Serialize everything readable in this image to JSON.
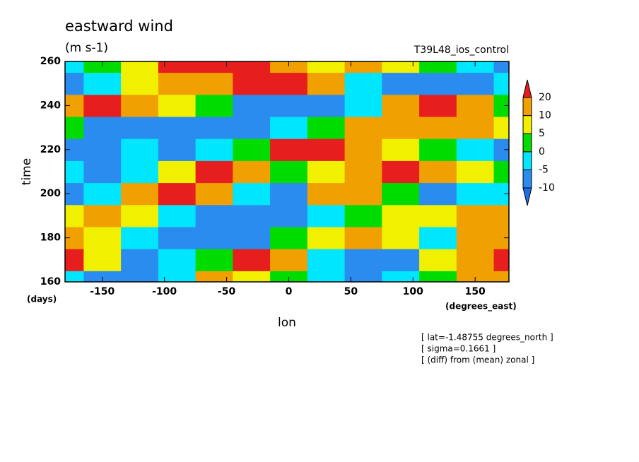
{
  "chart_data": {
    "type": "contour",
    "title": "eastward wind",
    "subtitle": "(m s-1)",
    "run_label": "T39L48_ios_control",
    "x_label": "lon",
    "y_label": "time",
    "y_unit": "(days)",
    "x_unit": "(degrees_east)",
    "notes": [
      "[ lat=-1.48755 degrees_north ]",
      "[ sigma=0.1661 ]",
      "[ (diff) from (mean) zonal ]"
    ],
    "xlim": [
      -180,
      177.1875
    ],
    "ylim": [
      160,
      260
    ],
    "xticks": [
      -150,
      -100,
      -50,
      0,
      50,
      100,
      150
    ],
    "yticks": [
      160,
      180,
      200,
      220,
      240,
      260
    ],
    "x": [
      -180,
      -150,
      -120,
      -90,
      -60,
      -30,
      0,
      30,
      60,
      90,
      120,
      150,
      180
    ],
    "y": [
      160,
      170,
      180,
      190,
      200,
      210,
      220,
      230,
      240,
      250,
      260
    ],
    "levels": [
      -10,
      -5,
      0,
      5,
      10,
      20
    ],
    "colors": [
      "#1e6ee6",
      "#2b8cf0",
      "#00e6ff",
      "#00dc00",
      "#f0f000",
      "#f0a000",
      "#e61e1e"
    ],
    "z": [
      [
        -5,
        -10,
        -10,
        -5,
        10,
        5,
        0,
        -5,
        -10,
        -5,
        0,
        10,
        10
      ],
      [
        20,
        5,
        -10,
        -5,
        0,
        20,
        10,
        -5,
        -10,
        -10,
        5,
        10,
        20
      ],
      [
        10,
        5,
        -5,
        -10,
        -10,
        -10,
        0,
        5,
        10,
        5,
        -5,
        10,
        10
      ],
      [
        5,
        10,
        5,
        -5,
        -10,
        -10,
        -10,
        -5,
        0,
        5,
        5,
        10,
        10
      ],
      [
        -10,
        -5,
        10,
        20,
        10,
        -5,
        -10,
        10,
        10,
        0,
        -10,
        -5,
        -5
      ],
      [
        -5,
        -10,
        -5,
        5,
        20,
        10,
        0,
        5,
        10,
        20,
        10,
        5,
        0
      ],
      [
        -10,
        -10,
        -5,
        -10,
        -5,
        0,
        20,
        20,
        10,
        5,
        0,
        -5,
        -10
      ],
      [
        0,
        -10,
        -10,
        -10,
        -10,
        -10,
        -5,
        0,
        10,
        10,
        10,
        10,
        5
      ],
      [
        10,
        20,
        10,
        5,
        0,
        -10,
        -10,
        -10,
        -5,
        10,
        20,
        10,
        0
      ],
      [
        -10,
        -5,
        5,
        10,
        10,
        20,
        20,
        10,
        -5,
        -10,
        -10,
        -10,
        -5
      ],
      [
        -5,
        0,
        5,
        20,
        20,
        20,
        10,
        5,
        10,
        5,
        0,
        -5,
        -10
      ]
    ]
  }
}
